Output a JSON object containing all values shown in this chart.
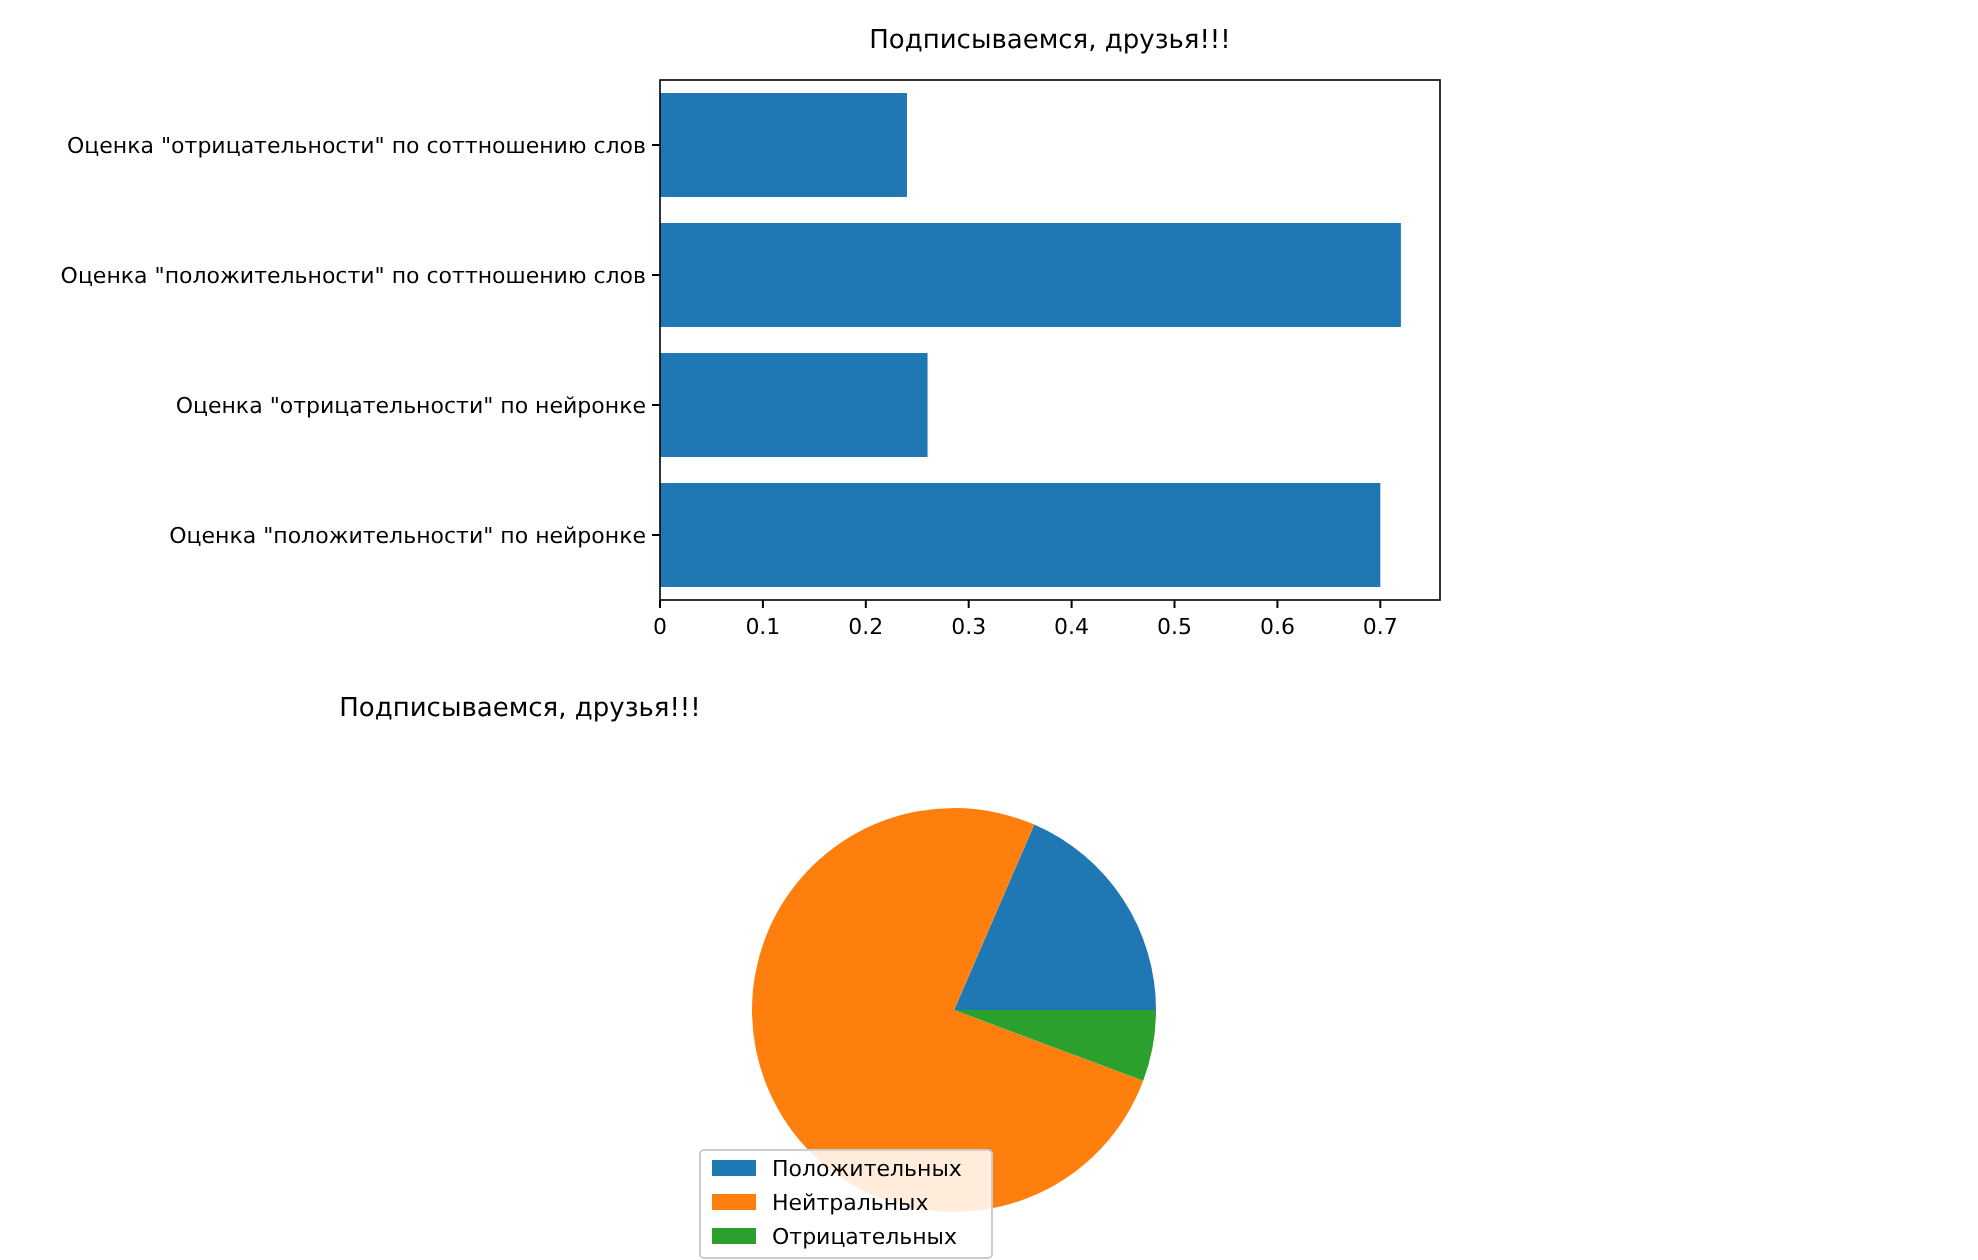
{
  "chart_data": [
    {
      "type": "bar",
      "orientation": "horizontal",
      "title": "Подписываемся, друзья!!!",
      "categories": [
        "Оценка \"отрицательности\"  по соттношению слов",
        "Оценка \"положительности\" по соттношению слов",
        "Оценка \"отрицательности\" по нейронке",
        "Оценка \"положительности\" по нейронке"
      ],
      "values": [
        0.24,
        0.72,
        0.26,
        0.7
      ],
      "color": "#1f77b4",
      "xlim": [
        0,
        0.758
      ],
      "xticks": [
        0,
        0.1,
        0.2,
        0.3,
        0.4,
        0.5,
        0.6,
        0.7
      ],
      "grid": false
    },
    {
      "type": "pie",
      "title": "Подписываемся, друзья!!!",
      "categories": [
        "Положительных",
        "Нейтральных",
        "Отрицательных"
      ],
      "values": [
        18.5,
        75.8,
        5.7
      ],
      "colors": [
        "#1f77b4",
        "#ff7f0e",
        "#2ca02c"
      ],
      "legend": "bottom"
    }
  ]
}
